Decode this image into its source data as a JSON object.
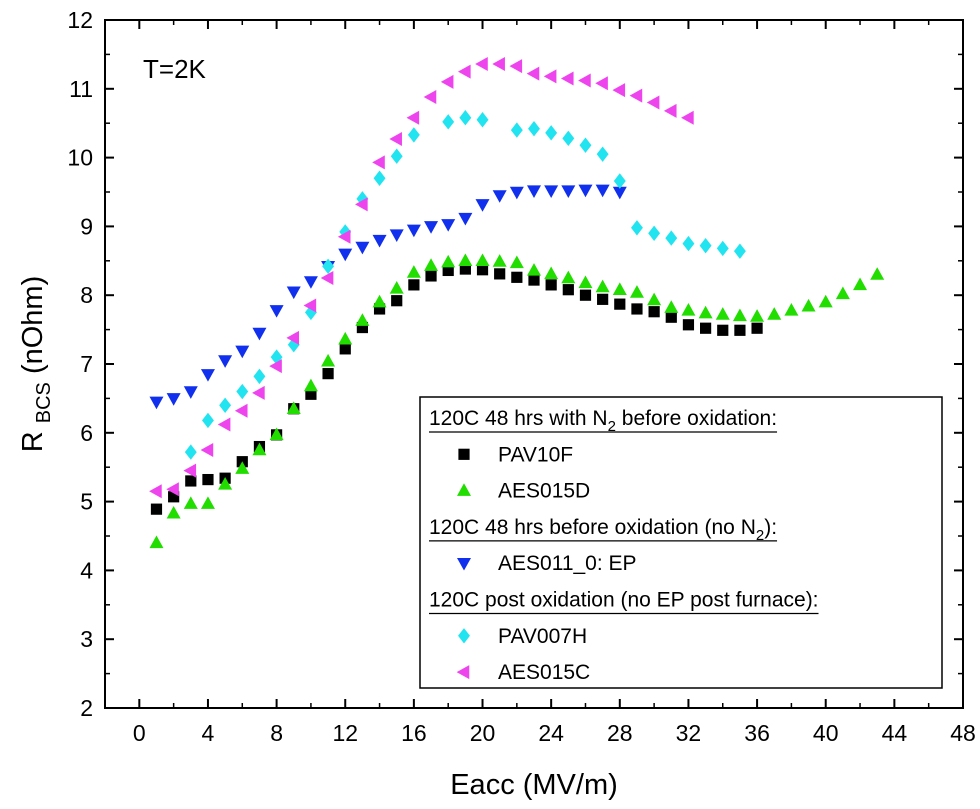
{
  "chart_data": {
    "type": "scatter",
    "title": "",
    "annotation": "T=2K",
    "xlabel": "Eacc (MV/m)",
    "ylabel": {
      "main": "R",
      "sub": "BCS",
      "rest": " (nOhm)"
    },
    "xlim": [
      -2,
      48
    ],
    "ylim": [
      2,
      12
    ],
    "xticks": [
      0,
      4,
      8,
      12,
      16,
      20,
      24,
      28,
      32,
      36,
      40,
      44,
      48
    ],
    "yticks": [
      2,
      3,
      4,
      5,
      6,
      7,
      8,
      9,
      10,
      11,
      12
    ],
    "grid": false,
    "legend_position": "bottom-right",
    "legend_groups": [
      {
        "header": {
          "before": "120C 48 hrs with N",
          "sub": "2",
          "after": " before oxidation:"
        },
        "series": [
          0,
          1
        ]
      },
      {
        "header": {
          "before": "120C 48 hrs before oxidation (no N",
          "sub": "2",
          "after": "):"
        },
        "series": [
          2
        ]
      },
      {
        "header": {
          "before": "120C post oxidation (no EP post furnace):",
          "sub": "",
          "after": ""
        },
        "series": [
          3,
          4
        ]
      }
    ],
    "series": [
      {
        "name": "PAV10F",
        "marker": "square",
        "color": "#000000",
        "x": [
          1,
          2,
          3,
          4,
          5,
          6,
          7,
          8,
          9,
          10,
          11,
          12,
          13,
          14,
          15,
          16,
          17,
          18,
          19,
          20,
          21,
          22,
          23,
          24,
          25,
          26,
          27,
          28,
          29,
          30,
          31,
          32,
          33,
          34,
          35,
          36
        ],
        "y": [
          4.89,
          5.07,
          5.3,
          5.32,
          5.34,
          5.58,
          5.8,
          5.97,
          6.35,
          6.56,
          6.86,
          7.22,
          7.53,
          7.8,
          7.92,
          8.15,
          8.28,
          8.36,
          8.38,
          8.37,
          8.31,
          8.26,
          8.22,
          8.15,
          8.08,
          8.0,
          7.94,
          7.87,
          7.8,
          7.76,
          7.68,
          7.57,
          7.52,
          7.49,
          7.49,
          7.52
        ]
      },
      {
        "name": "AES015D",
        "marker": "triangle-up",
        "color": "#22dd00",
        "x": [
          1,
          2,
          3,
          4,
          5,
          6,
          7,
          8,
          9,
          10,
          11,
          12,
          13,
          14,
          15,
          16,
          17,
          18,
          19,
          20,
          21,
          22,
          23,
          24,
          25,
          26,
          27,
          28,
          29,
          30,
          31,
          32,
          33,
          34,
          35,
          36,
          37,
          38,
          39,
          40,
          41,
          42,
          43
        ],
        "y": [
          4.4,
          4.83,
          4.97,
          4.97,
          5.25,
          5.48,
          5.75,
          5.97,
          6.35,
          6.68,
          7.04,
          7.36,
          7.63,
          7.9,
          8.1,
          8.33,
          8.43,
          8.48,
          8.5,
          8.5,
          8.49,
          8.47,
          8.36,
          8.31,
          8.25,
          8.18,
          8.12,
          8.08,
          8.04,
          7.93,
          7.82,
          7.78,
          7.74,
          7.72,
          7.7,
          7.69,
          7.72,
          7.78,
          7.84,
          7.9,
          8.02,
          8.15,
          8.3
        ]
      },
      {
        "name": "AES011_0: EP",
        "marker": "triangle-down",
        "color": "#1030ee",
        "x": [
          1,
          2,
          3,
          4,
          5,
          6,
          7,
          8,
          9,
          10,
          11,
          12,
          13,
          14,
          15,
          16,
          17,
          18,
          19,
          20,
          21,
          22,
          23,
          24,
          25,
          26,
          27,
          28
        ],
        "y": [
          6.45,
          6.5,
          6.6,
          6.85,
          7.05,
          7.19,
          7.45,
          7.78,
          8.05,
          8.2,
          8.42,
          8.6,
          8.7,
          8.8,
          8.88,
          8.95,
          9.0,
          9.03,
          9.12,
          9.32,
          9.45,
          9.5,
          9.52,
          9.52,
          9.52,
          9.53,
          9.53,
          9.5
        ]
      },
      {
        "name": "PAV007H",
        "marker": "diamond",
        "color": "#22e4f0",
        "x": [
          3,
          4,
          5,
          6,
          7,
          8,
          9,
          10,
          11,
          12,
          13,
          14,
          15,
          16,
          18,
          19,
          20,
          22,
          23,
          24,
          25,
          26,
          27,
          28,
          29,
          30,
          31,
          32,
          33,
          34,
          35
        ],
        "y": [
          5.72,
          6.18,
          6.4,
          6.6,
          6.82,
          7.1,
          7.28,
          7.75,
          8.42,
          8.92,
          9.4,
          9.7,
          10.02,
          10.33,
          10.52,
          10.58,
          10.55,
          10.4,
          10.42,
          10.36,
          10.28,
          10.18,
          10.05,
          9.66,
          8.98,
          8.9,
          8.83,
          8.75,
          8.72,
          8.68,
          8.64
        ]
      },
      {
        "name": "AES015C",
        "marker": "triangle-left",
        "color": "#ee44ee",
        "x": [
          1,
          2,
          3,
          4,
          5,
          6,
          7,
          8,
          9,
          10,
          11,
          12,
          13,
          14,
          15,
          16,
          17,
          18,
          19,
          20,
          21,
          22,
          23,
          24,
          25,
          26,
          27,
          28,
          29,
          30,
          31,
          32
        ],
        "y": [
          5.15,
          5.18,
          5.45,
          5.75,
          6.12,
          6.32,
          6.58,
          6.97,
          7.38,
          7.85,
          8.25,
          8.85,
          9.32,
          9.93,
          10.27,
          10.58,
          10.88,
          11.1,
          11.25,
          11.36,
          11.36,
          11.33,
          11.22,
          11.18,
          11.15,
          11.12,
          11.08,
          10.98,
          10.9,
          10.8,
          10.68,
          10.58
        ]
      }
    ]
  }
}
